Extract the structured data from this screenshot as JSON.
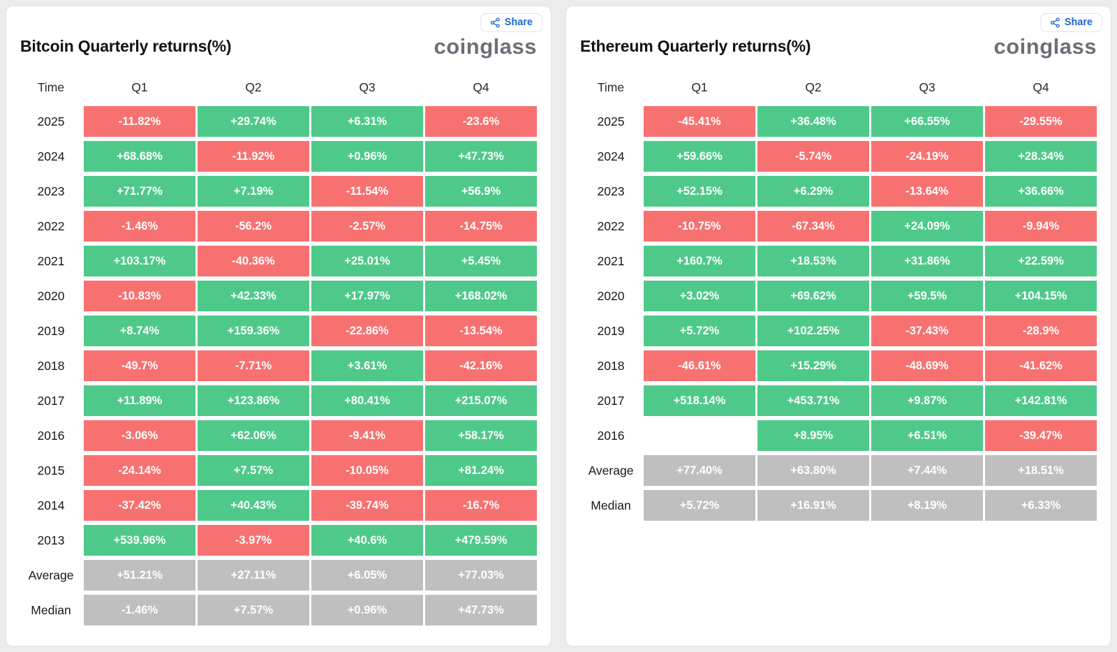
{
  "share_label": "Share",
  "logo_text": "coinglass",
  "colors": {
    "positive": "#4fc98a",
    "negative": "#f87171",
    "neutral": "#bfbfbf",
    "accent": "#2066d2",
    "logo": "#6b7077"
  },
  "chart_data": [
    {
      "type": "table",
      "title": "Bitcoin Quarterly returns(%)",
      "columns": [
        "Time",
        "Q1",
        "Q2",
        "Q3",
        "Q4"
      ],
      "rows": [
        {
          "label": "2025",
          "type": "year",
          "values": [
            "-11.82%",
            "+29.74%",
            "+6.31%",
            "-23.6%"
          ]
        },
        {
          "label": "2024",
          "type": "year",
          "values": [
            "+68.68%",
            "-11.92%",
            "+0.96%",
            "+47.73%"
          ]
        },
        {
          "label": "2023",
          "type": "year",
          "values": [
            "+71.77%",
            "+7.19%",
            "-11.54%",
            "+56.9%"
          ]
        },
        {
          "label": "2022",
          "type": "year",
          "values": [
            "-1.46%",
            "-56.2%",
            "-2.57%",
            "-14.75%"
          ]
        },
        {
          "label": "2021",
          "type": "year",
          "values": [
            "+103.17%",
            "-40.36%",
            "+25.01%",
            "+5.45%"
          ]
        },
        {
          "label": "2020",
          "type": "year",
          "values": [
            "-10.83%",
            "+42.33%",
            "+17.97%",
            "+168.02%"
          ]
        },
        {
          "label": "2019",
          "type": "year",
          "values": [
            "+8.74%",
            "+159.36%",
            "-22.86%",
            "-13.54%"
          ]
        },
        {
          "label": "2018",
          "type": "year",
          "values": [
            "-49.7%",
            "-7.71%",
            "+3.61%",
            "-42.16%"
          ]
        },
        {
          "label": "2017",
          "type": "year",
          "values": [
            "+11.89%",
            "+123.86%",
            "+80.41%",
            "+215.07%"
          ]
        },
        {
          "label": "2016",
          "type": "year",
          "values": [
            "-3.06%",
            "+62.06%",
            "-9.41%",
            "+58.17%"
          ]
        },
        {
          "label": "2015",
          "type": "year",
          "values": [
            "-24.14%",
            "+7.57%",
            "-10.05%",
            "+81.24%"
          ]
        },
        {
          "label": "2014",
          "type": "year",
          "values": [
            "-37.42%",
            "+40.43%",
            "-39.74%",
            "-16.7%"
          ]
        },
        {
          "label": "2013",
          "type": "year",
          "values": [
            "+539.96%",
            "-3.97%",
            "+40.6%",
            "+479.59%"
          ]
        },
        {
          "label": "Average",
          "type": "summary",
          "values": [
            "+51.21%",
            "+27.11%",
            "+6.05%",
            "+77.03%"
          ]
        },
        {
          "label": "Median",
          "type": "summary",
          "values": [
            "-1.46%",
            "+7.57%",
            "+0.96%",
            "+47.73%"
          ]
        }
      ]
    },
    {
      "type": "table",
      "title": "Ethereum Quarterly returns(%)",
      "columns": [
        "Time",
        "Q1",
        "Q2",
        "Q3",
        "Q4"
      ],
      "rows": [
        {
          "label": "2025",
          "type": "year",
          "values": [
            "-45.41%",
            "+36.48%",
            "+66.55%",
            "-29.55%"
          ]
        },
        {
          "label": "2024",
          "type": "year",
          "values": [
            "+59.66%",
            "-5.74%",
            "-24.19%",
            "+28.34%"
          ]
        },
        {
          "label": "2023",
          "type": "year",
          "values": [
            "+52.15%",
            "+6.29%",
            "-13.64%",
            "+36.66%"
          ]
        },
        {
          "label": "2022",
          "type": "year",
          "values": [
            "-10.75%",
            "-67.34%",
            "+24.09%",
            "-9.94%"
          ]
        },
        {
          "label": "2021",
          "type": "year",
          "values": [
            "+160.7%",
            "+18.53%",
            "+31.86%",
            "+22.59%"
          ]
        },
        {
          "label": "2020",
          "type": "year",
          "values": [
            "+3.02%",
            "+69.62%",
            "+59.5%",
            "+104.15%"
          ]
        },
        {
          "label": "2019",
          "type": "year",
          "values": [
            "+5.72%",
            "+102.25%",
            "-37.43%",
            "-28.9%"
          ]
        },
        {
          "label": "2018",
          "type": "year",
          "values": [
            "-46.61%",
            "+15.29%",
            "-48.69%",
            "-41.62%"
          ]
        },
        {
          "label": "2017",
          "type": "year",
          "values": [
            "+518.14%",
            "+453.71%",
            "+9.87%",
            "+142.81%"
          ]
        },
        {
          "label": "2016",
          "type": "year",
          "values": [
            "",
            "+8.95%",
            "+6.51%",
            "-39.47%"
          ]
        },
        {
          "label": "Average",
          "type": "summary",
          "values": [
            "+77.40%",
            "+63.80%",
            "+7.44%",
            "+18.51%"
          ]
        },
        {
          "label": "Median",
          "type": "summary",
          "values": [
            "+5.72%",
            "+16.91%",
            "+8.19%",
            "+6.33%"
          ]
        }
      ]
    }
  ]
}
